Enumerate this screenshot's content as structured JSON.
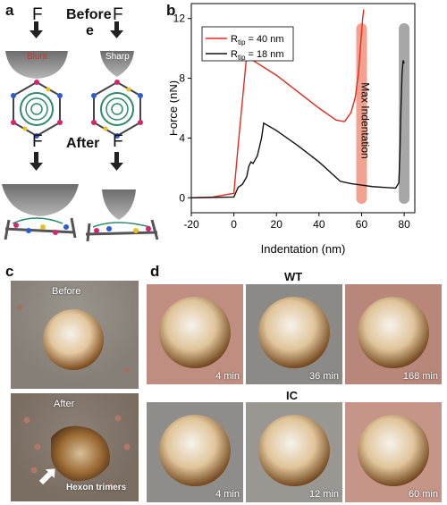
{
  "panel_a": {
    "letter": "a",
    "force_label": "F",
    "before_label": "Before",
    "before_label_wrap": "e",
    "after_label": "After",
    "tip_blunt": "Blunt",
    "tip_sharp": "Sharp"
  },
  "panel_b": {
    "letter": "b",
    "max_indentation_label": "Max Indentation",
    "chart_data": {
      "type": "line",
      "xlabel": "Indentation (nm)",
      "ylabel": "Force (nN)",
      "xlim": [
        -20,
        85
      ],
      "ylim": [
        -1,
        13
      ],
      "xticks": [
        -20,
        0,
        20,
        40,
        60,
        80
      ],
      "yticks": [
        0,
        4,
        8,
        12
      ],
      "legend_position": "top-left",
      "series": [
        {
          "name": "R_tip = 40 nm",
          "legend_main": "R",
          "legend_sub": "tip",
          "legend_rest": " = 40 nm",
          "color": "#e8291c",
          "x": [
            -20,
            -10,
            0,
            2,
            4,
            5.5,
            6,
            10,
            20,
            30,
            40,
            48,
            52,
            55,
            57,
            58.5,
            59.5,
            60.5,
            61
          ],
          "y": [
            0,
            0.05,
            0.3,
            3.5,
            6.5,
            8.8,
            9.5,
            9.1,
            8.2,
            7.1,
            6.0,
            5.2,
            5.1,
            5.7,
            6.7,
            8.3,
            10.2,
            12.0,
            12.6
          ]
        },
        {
          "name": "R_tip = 18 nm",
          "legend_main": "R",
          "legend_sub": "tip",
          "legend_rest": " = 18 nm",
          "color": "#111111",
          "x": [
            -20,
            0,
            2,
            4,
            6,
            7,
            8,
            9,
            11,
            13,
            14,
            20,
            30,
            40,
            50,
            55,
            60,
            65,
            70,
            76,
            77.5,
            78,
            78.5,
            79,
            79.5,
            80
          ],
          "y": [
            0,
            0.05,
            0.7,
            0.9,
            1.4,
            2.1,
            2.4,
            2.3,
            2.8,
            4.0,
            5.0,
            4.5,
            3.5,
            2.4,
            1.1,
            0.95,
            0.85,
            0.75,
            0.7,
            0.65,
            1.0,
            3.0,
            6.0,
            8.3,
            9.2,
            9.0
          ]
        }
      ],
      "shaded_bands": [
        {
          "x_center": 60,
          "color": "#f3a28f"
        },
        {
          "x_center": 80,
          "color": "#a7a7a7"
        }
      ]
    }
  },
  "panel_c": {
    "letter": "c",
    "top_label": "Before",
    "bottom_label": "After",
    "arrow_label": "Hexon trimers"
  },
  "panel_d": {
    "letter": "d",
    "row1_title": "WT",
    "row2_title": "IC",
    "row1_times": [
      "4 min",
      "36 min",
      "168 min"
    ],
    "row2_times": [
      "4 min",
      "12 min",
      "60 min"
    ]
  }
}
